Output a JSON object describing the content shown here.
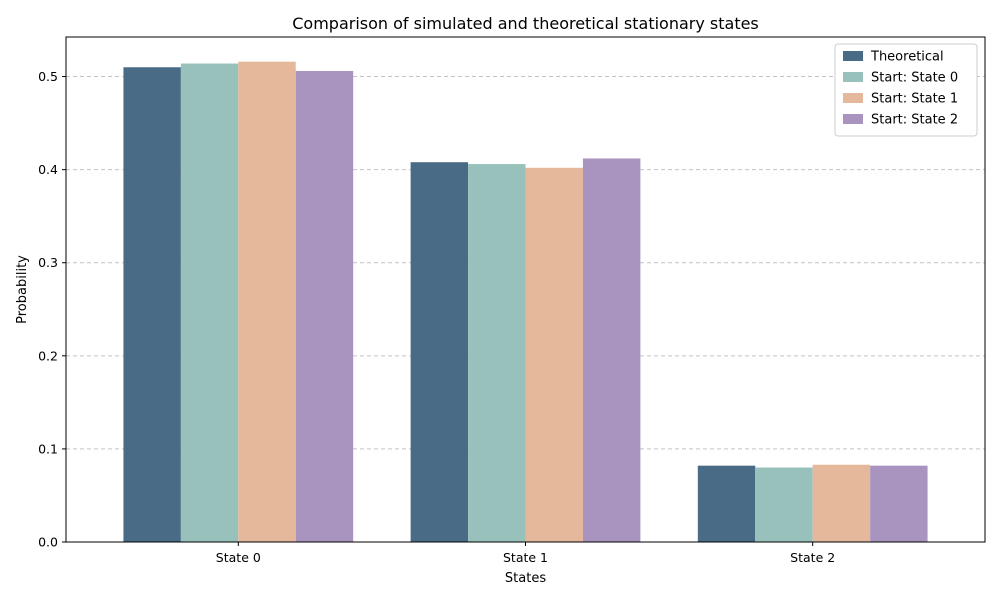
{
  "chart_data": {
    "type": "bar",
    "title": "Comparison of simulated and theoretical stationary states",
    "xlabel": "States",
    "ylabel": "Probability",
    "categories": [
      "State 0",
      "State 1",
      "State 2"
    ],
    "series": [
      {
        "name": "Theoretical",
        "values": [
          0.51,
          0.408,
          0.082
        ],
        "color": "#4a6b86"
      },
      {
        "name": "Start: State 0",
        "values": [
          0.514,
          0.406,
          0.08
        ],
        "color": "#99c1bc"
      },
      {
        "name": "Start: State 1",
        "values": [
          0.516,
          0.402,
          0.083
        ],
        "color": "#e6b89b"
      },
      {
        "name": "Start: State 2",
        "values": [
          0.506,
          0.412,
          0.082
        ],
        "color": "#a993bf"
      }
    ],
    "ylim": [
      0,
      0.5425
    ],
    "yticks": [
      "0.0",
      "0.1",
      "0.2",
      "0.3",
      "0.4",
      "0.5"
    ],
    "grid": "y, dashed",
    "legend_position": "top-right"
  }
}
